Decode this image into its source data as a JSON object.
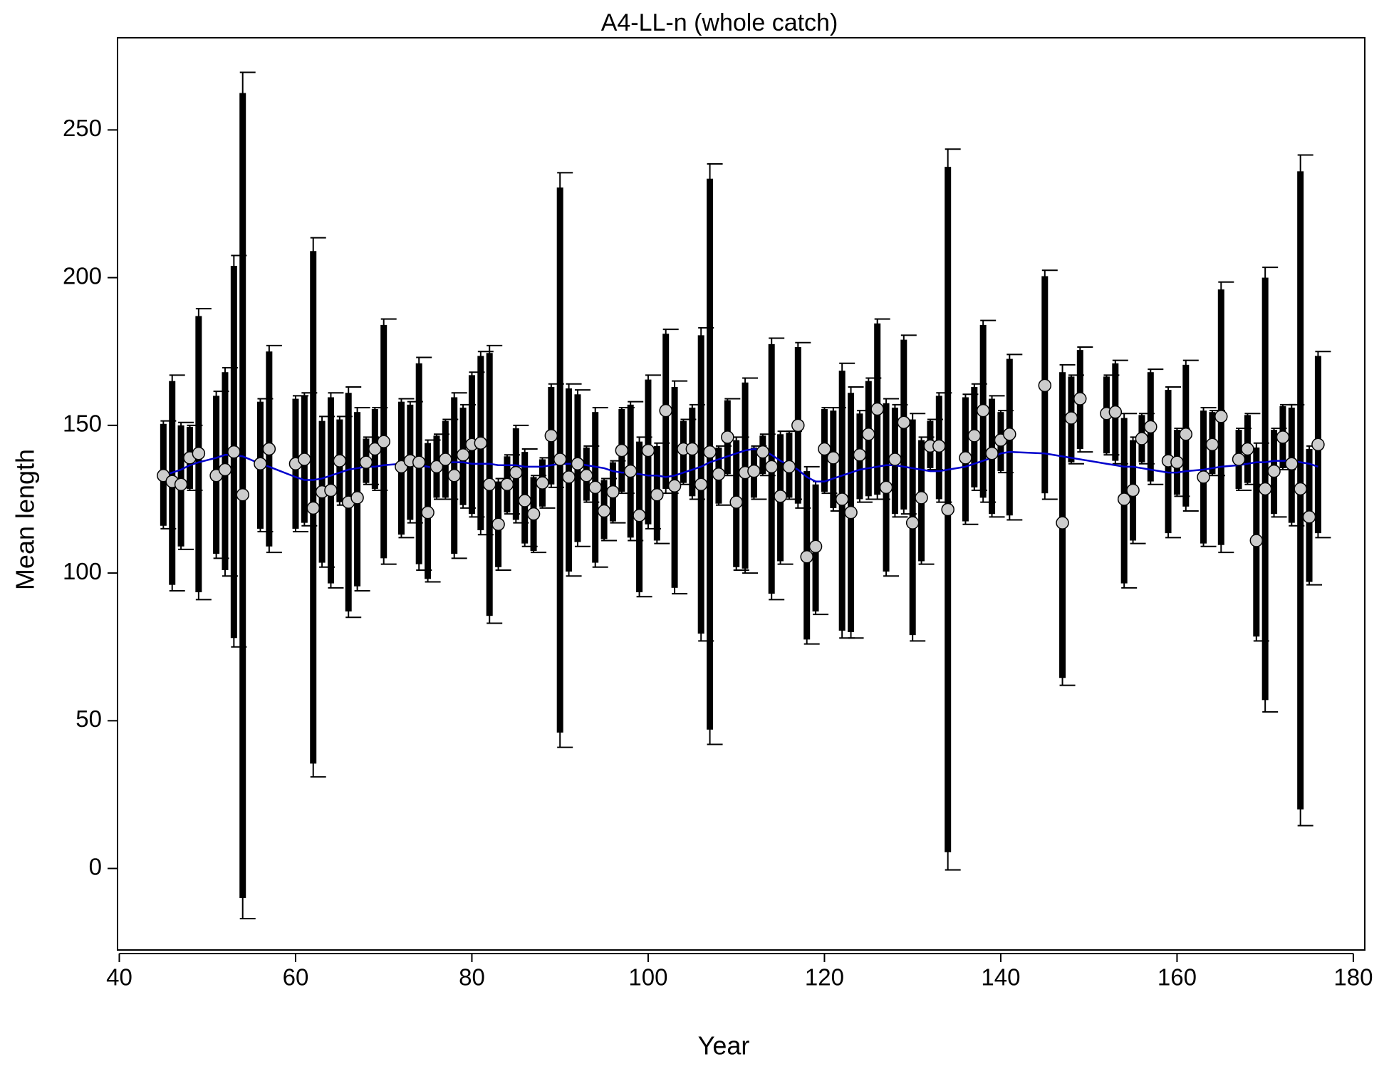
{
  "chart_data": {
    "type": "errorbar",
    "title": "A4-LL-n (whole catch)",
    "x_label": "Year",
    "y_label": "Mean length",
    "xlim": [
      39.8,
      181.3
    ],
    "ylim": [
      -27.6,
      281.2
    ],
    "xticks": [
      40,
      60,
      80,
      100,
      120,
      140,
      160,
      180
    ],
    "yticks": [
      0,
      50,
      100,
      150,
      200,
      250
    ],
    "point_color": "#cccccc",
    "bar_color": "#000000",
    "fit_color": "#0000cc",
    "x": [
      45,
      46,
      47,
      48,
      49,
      51,
      52,
      53,
      54,
      56,
      57,
      60,
      61,
      62,
      63,
      64,
      65,
      66,
      67,
      68,
      69,
      70,
      72,
      73,
      74,
      75,
      76,
      77,
      78,
      79,
      80,
      81,
      82,
      83,
      84,
      85,
      86,
      87,
      88,
      89,
      90,
      91,
      92,
      93,
      94,
      95,
      96,
      97,
      98,
      99,
      100,
      101,
      102,
      103,
      104,
      105,
      106,
      107,
      108,
      109,
      110,
      111,
      112,
      113,
      114,
      115,
      116,
      117,
      118,
      119,
      120,
      121,
      122,
      123,
      124,
      125,
      126,
      127,
      128,
      129,
      130,
      131,
      132,
      133,
      134,
      136,
      137,
      138,
      139,
      140,
      141,
      145,
      147,
      148,
      149,
      152,
      153,
      154,
      155,
      156,
      157,
      159,
      160,
      161,
      163,
      164,
      165,
      167,
      168,
      169,
      170,
      171,
      172,
      173,
      174,
      175,
      176
    ],
    "values": [
      133,
      131,
      130,
      139,
      140.5,
      133,
      135,
      141,
      126.5,
      137,
      142,
      137,
      138.5,
      122,
      127.5,
      128,
      138,
      124,
      125.5,
      137.5,
      142,
      144.5,
      136,
      138,
      137.5,
      120.5,
      136,
      138.5,
      133,
      140,
      143.5,
      144,
      130,
      116.5,
      130,
      134,
      124.5,
      120,
      130.5,
      146.5,
      138.5,
      132.5,
      137,
      133,
      129,
      121,
      127.5,
      141.5,
      134.5,
      119.5,
      141.5,
      126.5,
      155,
      129.5,
      142,
      142,
      130,
      141,
      133.5,
      146,
      124,
      134,
      134.5,
      141,
      136,
      126,
      136,
      150,
      105.5,
      109,
      142,
      139,
      125,
      120.5,
      140,
      147,
      155.5,
      129,
      138.5,
      151,
      117,
      125.5,
      143,
      143,
      121.5,
      139,
      146.5,
      155,
      140.5,
      145,
      147,
      163.5,
      117,
      152.5,
      159,
      154,
      154.5,
      125,
      128,
      145.5,
      149.5,
      138,
      137.5,
      147,
      132.5,
      143.5,
      153,
      138.5,
      142,
      111,
      128.5,
      134.5,
      146,
      137,
      128.5,
      119,
      143.5
    ],
    "lower": [
      115,
      94,
      108,
      128,
      91,
      105,
      99,
      75,
      -17,
      114,
      107,
      114,
      116,
      31,
      102,
      95,
      123,
      85,
      94,
      130,
      128,
      103,
      112,
      117,
      101,
      97,
      125,
      125,
      105,
      122,
      119,
      113,
      83,
      101,
      120,
      117,
      109,
      107,
      122,
      129,
      41,
      99,
      109,
      124,
      102,
      111,
      117,
      127,
      111,
      92,
      115,
      110,
      127,
      93,
      130,
      125,
      77,
      42,
      123,
      133,
      101,
      100,
      125,
      133,
      91,
      103,
      125,
      122,
      76,
      86,
      127,
      121,
      78,
      78,
      124,
      125,
      125,
      99,
      119,
      120,
      77,
      103,
      135,
      124,
      -0.5,
      116.5,
      128,
      124,
      119,
      134,
      118,
      125,
      62,
      137,
      141,
      140,
      137,
      95,
      110,
      137,
      130,
      112,
      126,
      121,
      109,
      133,
      107,
      128,
      130,
      77,
      53,
      119,
      135,
      116,
      14.5,
      96,
      112
    ],
    "upper": [
      151.5,
      167,
      151,
      150,
      189.5,
      161.5,
      169.5,
      207.5,
      269.5,
      159,
      177,
      160,
      161,
      213.5,
      153,
      161,
      153,
      163,
      156,
      146,
      156,
      186,
      159,
      158,
      173,
      145,
      147,
      152,
      161,
      157,
      168,
      175,
      177,
      132,
      140,
      150,
      142,
      133,
      139,
      164,
      235.5,
      164,
      162,
      143,
      156,
      132,
      138,
      156,
      158,
      146,
      167,
      144,
      182.5,
      165,
      152,
      157,
      183,
      238.5,
      143,
      159,
      146,
      166,
      143,
      147,
      179.5,
      148,
      148,
      178,
      136,
      131,
      156,
      156,
      171,
      163,
      155,
      166,
      186,
      159,
      157,
      180.5,
      154,
      146,
      152,
      161,
      243.5,
      160.5,
      164,
      185.5,
      160,
      155,
      174,
      202.5,
      170.5,
      167,
      176.5,
      167,
      172,
      154,
      146,
      154,
      169,
      163,
      149,
      172,
      156,
      155,
      198.5,
      149,
      154,
      144,
      203.5,
      149,
      157,
      157,
      241.5,
      143,
      175
    ],
    "inner_lower": [
      116,
      96,
      109,
      128.5,
      93.5,
      106.5,
      101,
      78,
      -10,
      115,
      109,
      115,
      117,
      35.5,
      103.5,
      96.5,
      124,
      87,
      95.5,
      130.5,
      128.5,
      105,
      113,
      118,
      103,
      98,
      125.5,
      125.5,
      106.5,
      123,
      120,
      114.5,
      85.5,
      102,
      120.5,
      118,
      110,
      107.5,
      122.5,
      130,
      46,
      100.5,
      110.5,
      124.5,
      103.5,
      111.5,
      117.5,
      127.5,
      112,
      93.5,
      116.5,
      111,
      128.5,
      95,
      130.5,
      126,
      79.5,
      47,
      123.5,
      133.5,
      102,
      101.5,
      125.5,
      133.5,
      93,
      104,
      125.5,
      123.5,
      77.5,
      87,
      127.5,
      122,
      80.5,
      80,
      125,
      126,
      126.5,
      100.5,
      120,
      121.5,
      79,
      104,
      135.5,
      125,
      5.5,
      117.5,
      129,
      125.5,
      120,
      134.5,
      119.5,
      127,
      64.5,
      137.5,
      142,
      140.5,
      138,
      96.5,
      111,
      137.5,
      131,
      113.5,
      126.5,
      122.5,
      110,
      133.5,
      109.5,
      128.5,
      130.5,
      78.5,
      57,
      120,
      135.5,
      117,
      20,
      97,
      113.5
    ],
    "inner_upper": [
      150.5,
      165,
      150,
      149.5,
      187,
      160,
      168,
      204,
      262.5,
      158,
      175,
      159,
      160,
      209,
      151.5,
      159.5,
      152,
      161,
      154.5,
      145.5,
      155.5,
      184,
      158,
      157,
      171,
      144,
      146.5,
      151.5,
      159.5,
      156,
      167,
      173.5,
      174.5,
      131,
      139.5,
      149,
      141,
      132.5,
      138.5,
      163,
      230.5,
      162.5,
      160.5,
      142.5,
      154.5,
      131.5,
      137.5,
      155.5,
      157,
      144.5,
      165.5,
      143,
      181,
      163,
      151.5,
      156,
      180.5,
      233.5,
      142.5,
      158.5,
      145,
      164.5,
      142.5,
      146.5,
      177.5,
      147,
      147.5,
      176.5,
      134.5,
      130,
      155.5,
      155,
      168.5,
      161,
      154,
      165,
      184.5,
      157.5,
      156,
      179,
      152,
      145,
      151.5,
      160,
      237.5,
      159.5,
      163,
      184,
      159,
      154.5,
      172.5,
      200.5,
      168,
      166.5,
      175.5,
      166.5,
      171,
      152.5,
      145,
      153.5,
      168,
      162,
      148.5,
      170.5,
      155,
      154.5,
      196,
      148.5,
      153.5,
      142.5,
      200,
      148.5,
      156.5,
      156,
      236,
      142,
      173.5
    ],
    "fit": [
      133,
      134,
      135,
      136.5,
      137.5,
      139,
      140,
      140,
      139.5,
      137,
      136,
      132.5,
      131.5,
      131.5,
      132,
      133,
      134,
      135,
      135.5,
      136,
      136,
      136.5,
      137,
      136.5,
      136.5,
      136,
      135.5,
      137.5,
      137.5,
      137.5,
      137,
      137,
      137,
      136.5,
      136.5,
      136.5,
      136,
      136,
      136,
      136.5,
      137,
      137,
      137,
      136.5,
      136,
      135.5,
      134.5,
      134,
      134,
      133.5,
      133,
      133,
      132.5,
      133,
      134,
      135,
      136,
      137.5,
      138.5,
      139.5,
      140.5,
      141.5,
      142,
      141.5,
      140,
      138,
      136.5,
      135,
      132.5,
      131,
      131,
      132,
      133,
      134,
      135,
      135.5,
      136,
      136.5,
      136.5,
      136,
      135.5,
      135,
      134.5,
      134.5,
      135,
      136,
      137,
      138,
      139,
      140.5,
      141,
      140.5,
      139.5,
      139,
      138.5,
      137,
      136.5,
      136,
      136,
      135.5,
      135,
      134,
      134,
      134.5,
      135,
      135.5,
      136,
      136.5,
      137,
      137.5,
      137.5,
      138,
      138,
      138,
      137.5,
      137,
      136
    ]
  }
}
